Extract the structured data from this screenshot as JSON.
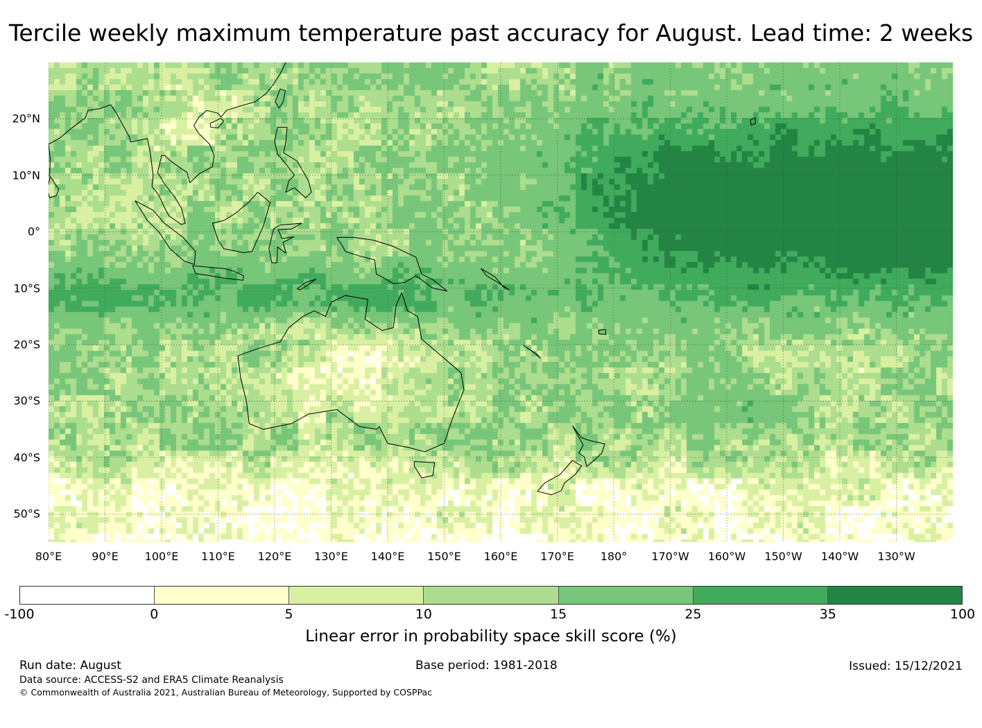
{
  "title": "Tercile weekly maximum temperature past accuracy for August. Lead time: 2 weeks",
  "map": {
    "projection": "PlateCarree",
    "lon_range_east": [
      80,
      240
    ],
    "lat_range": [
      -55,
      30
    ],
    "lat_labels": [
      "20°N",
      "10°N",
      "0°",
      "10°S",
      "20°S",
      "30°S",
      "40°S",
      "50°S"
    ],
    "lat_values": [
      20,
      10,
      0,
      -10,
      -20,
      -30,
      -40,
      -50
    ],
    "lon_labels": [
      "80°E",
      "90°E",
      "100°E",
      "110°E",
      "120°E",
      "130°E",
      "140°E",
      "150°E",
      "160°E",
      "170°E",
      "180°",
      "170°W",
      "160°W",
      "150°W",
      "140°W",
      "130°W"
    ],
    "lon_values": [
      80,
      90,
      100,
      110,
      120,
      130,
      140,
      150,
      160,
      170,
      180,
      190,
      200,
      210,
      220,
      230
    ],
    "gridlines": true,
    "coastlines": true
  },
  "colorbar": {
    "ticks": [
      "-100",
      "0",
      "5",
      "10",
      "15",
      "25",
      "35",
      "100"
    ],
    "colors": [
      "#ffffff",
      "#ffffcc",
      "#d9f0a3",
      "#addd8e",
      "#78c679",
      "#41ab5d",
      "#238443"
    ],
    "label": "Linear error in probability space skill score (%)"
  },
  "footer": {
    "run_date": "Run date: August",
    "base_period": "Base period: 1981-2018",
    "issued": "Issued: 15/12/2021",
    "data_source": "Data source: ACCESS-S2 and ERA5 Climate Reanalysis",
    "copyright": "© Commonwealth of Australia 2021, Australian Bureau of Meteorology, Supported by COSPPac"
  }
}
